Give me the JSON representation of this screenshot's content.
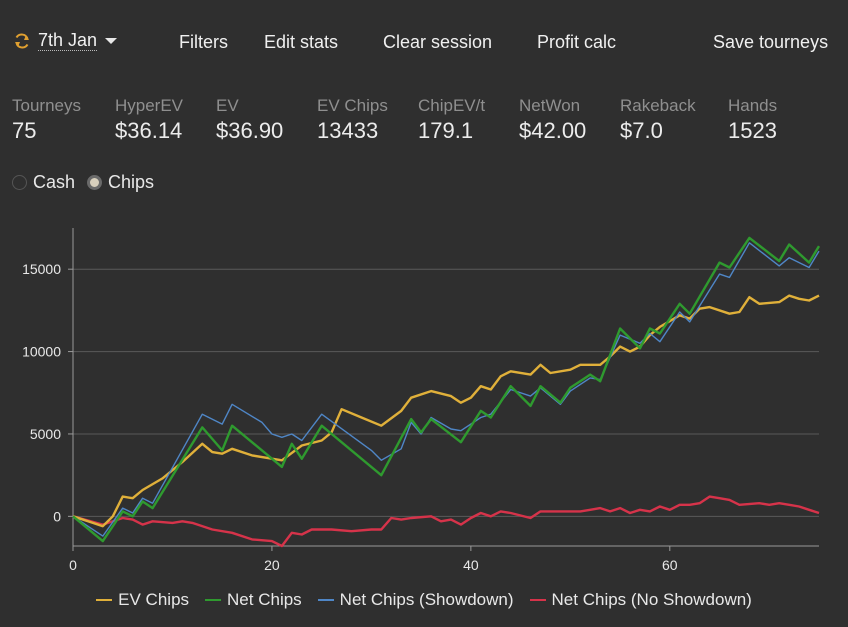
{
  "toolbar": {
    "date_label": "7th Jan",
    "buttons": [
      "Filters",
      "Edit stats",
      "Clear session",
      "Profit calc",
      "Save tourneys"
    ]
  },
  "stats": [
    {
      "label": "Tourneys",
      "value": "75"
    },
    {
      "label": "HyperEV",
      "value": "$36.14"
    },
    {
      "label": "EV",
      "value": "$36.90"
    },
    {
      "label": "EV Chips",
      "value": "13433"
    },
    {
      "label": "ChipEV/t",
      "value": "179.1"
    },
    {
      "label": "NetWon",
      "value": "$42.00"
    },
    {
      "label": "Rakeback",
      "value": "$7.0"
    },
    {
      "label": "Hands",
      "value": "1523"
    }
  ],
  "mode": {
    "options": [
      "Cash",
      "Chips"
    ],
    "selected": "Chips"
  },
  "colors": {
    "ev_chips": "#e0b03a",
    "net_chips": "#2f9a2f",
    "net_showdown": "#4f86c6",
    "net_no_showdown": "#d6334a",
    "accent_icon": "#e0a030"
  },
  "chart_data": {
    "type": "line",
    "xlim": [
      0,
      75
    ],
    "ylim": [
      -1800,
      17500
    ],
    "x_ticks": [
      0,
      20,
      40,
      60
    ],
    "y_ticks": [
      0,
      5000,
      10000,
      15000
    ],
    "grid": true,
    "legend_position": "bottom",
    "series": [
      {
        "name": "EV Chips",
        "color": "#e0b03a",
        "points": [
          [
            0,
            0
          ],
          [
            2,
            -400
          ],
          [
            3,
            -600
          ],
          [
            4,
            0
          ],
          [
            5,
            1200
          ],
          [
            6,
            1100
          ],
          [
            7,
            1600
          ],
          [
            9,
            2300
          ],
          [
            11,
            3300
          ],
          [
            13,
            4400
          ],
          [
            14,
            3900
          ],
          [
            15,
            3800
          ],
          [
            16,
            4100
          ],
          [
            18,
            3700
          ],
          [
            20,
            3500
          ],
          [
            21,
            3400
          ],
          [
            23,
            4300
          ],
          [
            25,
            4600
          ],
          [
            26,
            5100
          ],
          [
            27,
            6500
          ],
          [
            29,
            6000
          ],
          [
            31,
            5500
          ],
          [
            33,
            6400
          ],
          [
            34,
            7200
          ],
          [
            36,
            7600
          ],
          [
            38,
            7300
          ],
          [
            39,
            6900
          ],
          [
            40,
            7200
          ],
          [
            41,
            7900
          ],
          [
            42,
            7700
          ],
          [
            43,
            8500
          ],
          [
            44,
            8800
          ],
          [
            46,
            8600
          ],
          [
            47,
            9200
          ],
          [
            48,
            8700
          ],
          [
            50,
            8900
          ],
          [
            51,
            9200
          ],
          [
            53,
            9200
          ],
          [
            54,
            9700
          ],
          [
            55,
            10300
          ],
          [
            56,
            10000
          ],
          [
            57,
            10300
          ],
          [
            58,
            11000
          ],
          [
            59,
            11500
          ],
          [
            61,
            12200
          ],
          [
            62,
            12000
          ],
          [
            63,
            12600
          ],
          [
            64,
            12700
          ],
          [
            66,
            12300
          ],
          [
            67,
            12400
          ],
          [
            68,
            13300
          ],
          [
            69,
            12900
          ],
          [
            71,
            13000
          ],
          [
            72,
            13400
          ],
          [
            73,
            13200
          ],
          [
            74,
            13100
          ],
          [
            75,
            13400
          ]
        ]
      },
      {
        "name": "Net Chips",
        "color": "#2f9a2f",
        "points": [
          [
            0,
            0
          ],
          [
            3,
            -1500
          ],
          [
            5,
            300
          ],
          [
            6,
            0
          ],
          [
            7,
            900
          ],
          [
            8,
            500
          ],
          [
            13,
            5400
          ],
          [
            15,
            4000
          ],
          [
            16,
            5500
          ],
          [
            21,
            3000
          ],
          [
            22,
            4400
          ],
          [
            23,
            3500
          ],
          [
            25,
            5500
          ],
          [
            31,
            2500
          ],
          [
            34,
            5900
          ],
          [
            35,
            5100
          ],
          [
            36,
            5900
          ],
          [
            39,
            4500
          ],
          [
            41,
            6400
          ],
          [
            42,
            6000
          ],
          [
            44,
            7900
          ],
          [
            46,
            6700
          ],
          [
            47,
            7900
          ],
          [
            49,
            6900
          ],
          [
            50,
            7800
          ],
          [
            52,
            8600
          ],
          [
            53,
            8200
          ],
          [
            55,
            11400
          ],
          [
            57,
            10200
          ],
          [
            58,
            11400
          ],
          [
            59,
            11100
          ],
          [
            61,
            12900
          ],
          [
            62,
            12300
          ],
          [
            65,
            15400
          ],
          [
            66,
            15100
          ],
          [
            68,
            16900
          ],
          [
            71,
            15500
          ],
          [
            72,
            16500
          ],
          [
            74,
            15400
          ],
          [
            75,
            16400
          ]
        ]
      },
      {
        "name": "Net Chips (Showdown)",
        "color": "#4f86c6",
        "points": [
          [
            0,
            0
          ],
          [
            3,
            -1200
          ],
          [
            5,
            500
          ],
          [
            6,
            200
          ],
          [
            7,
            1100
          ],
          [
            8,
            800
          ],
          [
            13,
            6200
          ],
          [
            15,
            5600
          ],
          [
            16,
            6800
          ],
          [
            19,
            5700
          ],
          [
            20,
            5000
          ],
          [
            21,
            4800
          ],
          [
            22,
            5000
          ],
          [
            23,
            4600
          ],
          [
            25,
            6200
          ],
          [
            30,
            4000
          ],
          [
            31,
            3400
          ],
          [
            33,
            4100
          ],
          [
            34,
            5700
          ],
          [
            35,
            5000
          ],
          [
            36,
            6000
          ],
          [
            38,
            5300
          ],
          [
            39,
            5200
          ],
          [
            41,
            6000
          ],
          [
            42,
            6200
          ],
          [
            44,
            7700
          ],
          [
            46,
            7300
          ],
          [
            47,
            7800
          ],
          [
            49,
            6800
          ],
          [
            50,
            7600
          ],
          [
            52,
            8400
          ],
          [
            53,
            8300
          ],
          [
            55,
            11000
          ],
          [
            57,
            10500
          ],
          [
            58,
            11100
          ],
          [
            59,
            10600
          ],
          [
            61,
            12400
          ],
          [
            62,
            11800
          ],
          [
            65,
            14700
          ],
          [
            66,
            14500
          ],
          [
            68,
            16600
          ],
          [
            71,
            15200
          ],
          [
            72,
            15700
          ],
          [
            74,
            15100
          ],
          [
            75,
            16100
          ]
        ]
      },
      {
        "name": "Net Chips (No Showdown)",
        "color": "#d6334a",
        "points": [
          [
            0,
            0
          ],
          [
            3,
            -500
          ],
          [
            5,
            -100
          ],
          [
            6,
            -200
          ],
          [
            7,
            -500
          ],
          [
            8,
            -300
          ],
          [
            10,
            -400
          ],
          [
            11,
            -300
          ],
          [
            12,
            -400
          ],
          [
            14,
            -800
          ],
          [
            16,
            -1000
          ],
          [
            18,
            -1400
          ],
          [
            20,
            -1500
          ],
          [
            21,
            -1800
          ],
          [
            22,
            -1000
          ],
          [
            23,
            -1100
          ],
          [
            24,
            -800
          ],
          [
            26,
            -800
          ],
          [
            28,
            -900
          ],
          [
            30,
            -800
          ],
          [
            31,
            -800
          ],
          [
            32,
            -100
          ],
          [
            33,
            -200
          ],
          [
            34,
            -100
          ],
          [
            36,
            0
          ],
          [
            37,
            -300
          ],
          [
            38,
            -200
          ],
          [
            39,
            -500
          ],
          [
            40,
            -100
          ],
          [
            41,
            200
          ],
          [
            42,
            0
          ],
          [
            43,
            300
          ],
          [
            44,
            200
          ],
          [
            46,
            -100
          ],
          [
            47,
            300
          ],
          [
            49,
            300
          ],
          [
            51,
            300
          ],
          [
            52,
            400
          ],
          [
            53,
            500
          ],
          [
            54,
            300
          ],
          [
            55,
            500
          ],
          [
            56,
            200
          ],
          [
            57,
            400
          ],
          [
            58,
            300
          ],
          [
            59,
            600
          ],
          [
            60,
            400
          ],
          [
            61,
            700
          ],
          [
            62,
            700
          ],
          [
            63,
            800
          ],
          [
            64,
            1200
          ],
          [
            65,
            1100
          ],
          [
            66,
            1000
          ],
          [
            67,
            700
          ],
          [
            69,
            800
          ],
          [
            70,
            700
          ],
          [
            71,
            800
          ],
          [
            72,
            700
          ],
          [
            73,
            600
          ],
          [
            74,
            400
          ],
          [
            75,
            200
          ]
        ]
      }
    ]
  }
}
